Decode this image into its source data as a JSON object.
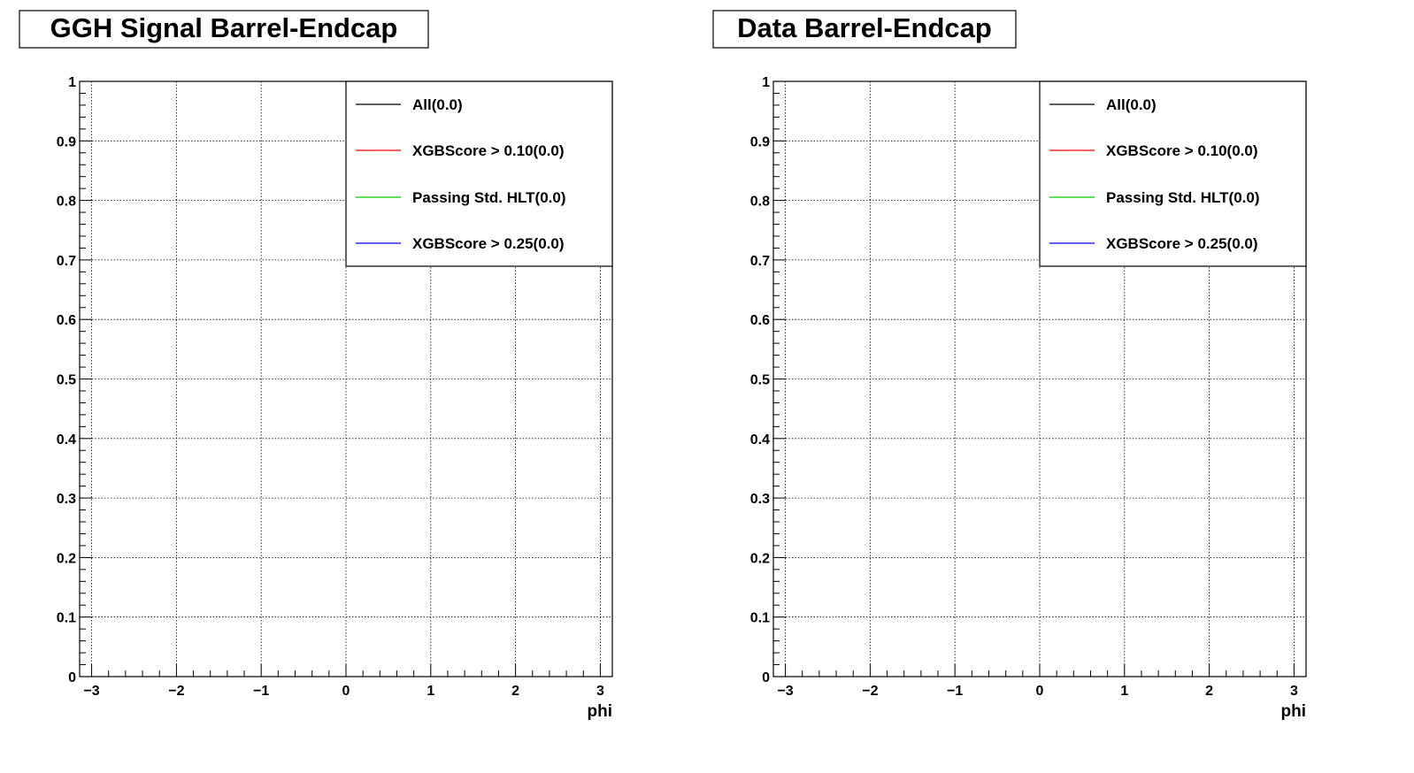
{
  "chart_data": [
    {
      "type": "line",
      "title": "GGH Signal Barrel-Endcap",
      "xlabel": "phi",
      "ylabel": "",
      "xlim": [
        -3.1416,
        3.1416
      ],
      "ylim": [
        0,
        1
      ],
      "xticks": [
        -3,
        -2,
        -1,
        0,
        1,
        2,
        3
      ],
      "xtick_labels": [
        "−3",
        "−2",
        "−1",
        "0",
        "1",
        "2",
        "3"
      ],
      "yticks": [
        0,
        0.1,
        0.2,
        0.3,
        0.4,
        0.5,
        0.6,
        0.7,
        0.8,
        0.9,
        1
      ],
      "ytick_labels": [
        "0",
        "0.1",
        "0.2",
        "0.3",
        "0.4",
        "0.5",
        "0.6",
        "0.7",
        "0.8",
        "0.9",
        "1"
      ],
      "grid": true,
      "legend_position": "top-right",
      "series": [
        {
          "name": "All(0.0)",
          "color": "#000000",
          "values": []
        },
        {
          "name": "XGBScore > 0.10(0.0)",
          "color": "#ff0000",
          "values": []
        },
        {
          "name": "Passing Std. HLT(0.0)",
          "color": "#00cc00",
          "values": []
        },
        {
          "name": "XGBScore > 0.25(0.0)",
          "color": "#0000ff",
          "values": []
        }
      ]
    },
    {
      "type": "line",
      "title": "Data Barrel-Endcap",
      "xlabel": "phi",
      "ylabel": "",
      "xlim": [
        -3.1416,
        3.1416
      ],
      "ylim": [
        0,
        1
      ],
      "xticks": [
        -3,
        -2,
        -1,
        0,
        1,
        2,
        3
      ],
      "xtick_labels": [
        "−3",
        "−2",
        "−1",
        "0",
        "1",
        "2",
        "3"
      ],
      "yticks": [
        0,
        0.1,
        0.2,
        0.3,
        0.4,
        0.5,
        0.6,
        0.7,
        0.8,
        0.9,
        1
      ],
      "ytick_labels": [
        "0",
        "0.1",
        "0.2",
        "0.3",
        "0.4",
        "0.5",
        "0.6",
        "0.7",
        "0.8",
        "0.9",
        "1"
      ],
      "grid": true,
      "legend_position": "top-right",
      "series": [
        {
          "name": "All(0.0)",
          "color": "#000000",
          "values": []
        },
        {
          "name": "XGBScore > 0.10(0.0)",
          "color": "#ff0000",
          "values": []
        },
        {
          "name": "Passing Std. HLT(0.0)",
          "color": "#00cc00",
          "values": []
        },
        {
          "name": "XGBScore > 0.25(0.0)",
          "color": "#0000ff",
          "values": []
        }
      ]
    }
  ]
}
